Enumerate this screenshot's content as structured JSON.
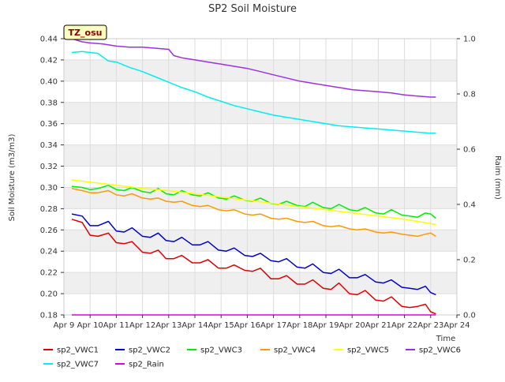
{
  "chart_data": {
    "type": "line",
    "title": "SP2 Soil Moisture",
    "xlabel": "Time",
    "ylabel": "Soil Moisture (m3/m3)",
    "y2label": "Raim (mm)",
    "badge": "TZ_osu",
    "colors": {
      "background_band": "#efefef",
      "badge_fill": "#ffffc0",
      "badge_text": "#8b0000"
    },
    "x_ticks": [
      "Apr 9",
      "Apr 10",
      "Apr 11",
      "Apr 12",
      "Apr 13",
      "Apr 14",
      "Apr 15",
      "Apr 16",
      "Apr 17",
      "Apr 18",
      "Apr 19",
      "Apr 20",
      "Apr 21",
      "Apr 22",
      "Apr 23",
      "Apr 24"
    ],
    "xlim": [
      0,
      15
    ],
    "ylim": [
      0.18,
      0.44
    ],
    "y_ticks": [
      "0.18",
      "0.20",
      "0.22",
      "0.24",
      "0.26",
      "0.28",
      "0.30",
      "0.32",
      "0.34",
      "0.36",
      "0.38",
      "0.40",
      "0.42",
      "0.44"
    ],
    "y2lim": [
      0.0,
      1.0
    ],
    "y2_ticks": [
      "0.0",
      "0.2",
      "0.4",
      "0.6",
      "0.8",
      "1.0"
    ],
    "grid": true,
    "legend": "bottom",
    "series": [
      {
        "name": "sp2_VWC1",
        "color": "#dd0000",
        "axis": "left",
        "x": [
          0.3,
          0.7,
          1.0,
          1.3,
          1.7,
          2.0,
          2.3,
          2.6,
          3.0,
          3.3,
          3.6,
          3.9,
          4.2,
          4.5,
          4.9,
          5.2,
          5.5,
          5.9,
          6.2,
          6.5,
          6.9,
          7.2,
          7.5,
          7.9,
          8.2,
          8.5,
          8.9,
          9.2,
          9.5,
          9.9,
          10.2,
          10.5,
          10.9,
          11.2,
          11.5,
          11.9,
          12.2,
          12.5,
          12.9,
          13.2,
          13.5,
          13.8,
          14.0,
          14.2
        ],
        "y": [
          0.27,
          0.267,
          0.255,
          0.254,
          0.257,
          0.248,
          0.247,
          0.249,
          0.239,
          0.238,
          0.241,
          0.233,
          0.233,
          0.236,
          0.229,
          0.229,
          0.232,
          0.224,
          0.224,
          0.227,
          0.222,
          0.221,
          0.224,
          0.214,
          0.214,
          0.217,
          0.209,
          0.209,
          0.213,
          0.205,
          0.204,
          0.21,
          0.2,
          0.199,
          0.203,
          0.194,
          0.193,
          0.197,
          0.188,
          0.187,
          0.188,
          0.19,
          0.183,
          0.181
        ]
      },
      {
        "name": "sp2_VWC2",
        "color": "#0000cc",
        "axis": "left",
        "x": [
          0.3,
          0.7,
          1.0,
          1.3,
          1.7,
          2.0,
          2.3,
          2.6,
          3.0,
          3.3,
          3.6,
          3.9,
          4.2,
          4.5,
          4.9,
          5.2,
          5.5,
          5.9,
          6.2,
          6.5,
          6.9,
          7.2,
          7.5,
          7.9,
          8.2,
          8.5,
          8.9,
          9.2,
          9.5,
          9.9,
          10.2,
          10.5,
          10.9,
          11.2,
          11.5,
          11.9,
          12.2,
          12.5,
          12.9,
          13.2,
          13.5,
          13.8,
          14.0,
          14.2
        ],
        "y": [
          0.275,
          0.273,
          0.264,
          0.264,
          0.268,
          0.259,
          0.258,
          0.262,
          0.254,
          0.253,
          0.257,
          0.25,
          0.249,
          0.253,
          0.246,
          0.246,
          0.249,
          0.241,
          0.24,
          0.243,
          0.236,
          0.235,
          0.238,
          0.231,
          0.23,
          0.233,
          0.225,
          0.224,
          0.228,
          0.22,
          0.219,
          0.223,
          0.215,
          0.215,
          0.218,
          0.211,
          0.21,
          0.213,
          0.206,
          0.205,
          0.204,
          0.207,
          0.201,
          0.199
        ]
      },
      {
        "name": "sp2_VWC3",
        "color": "#00ee00",
        "axis": "left",
        "x": [
          0.3,
          0.7,
          1.0,
          1.3,
          1.7,
          2.0,
          2.3,
          2.6,
          3.0,
          3.3,
          3.6,
          3.9,
          4.2,
          4.5,
          4.9,
          5.2,
          5.5,
          5.9,
          6.2,
          6.5,
          6.9,
          7.2,
          7.5,
          7.9,
          8.2,
          8.5,
          8.9,
          9.2,
          9.5,
          9.9,
          10.2,
          10.5,
          10.9,
          11.2,
          11.5,
          11.9,
          12.2,
          12.5,
          12.9,
          13.2,
          13.5,
          13.8,
          14.0,
          14.2
        ],
        "y": [
          0.301,
          0.3,
          0.298,
          0.299,
          0.302,
          0.298,
          0.297,
          0.3,
          0.296,
          0.295,
          0.299,
          0.294,
          0.293,
          0.297,
          0.293,
          0.292,
          0.295,
          0.29,
          0.289,
          0.292,
          0.288,
          0.287,
          0.29,
          0.285,
          0.284,
          0.287,
          0.283,
          0.282,
          0.286,
          0.281,
          0.28,
          0.284,
          0.279,
          0.278,
          0.281,
          0.276,
          0.275,
          0.279,
          0.274,
          0.273,
          0.272,
          0.276,
          0.275,
          0.271
        ]
      },
      {
        "name": "sp2_VWC4",
        "color": "#ff9900",
        "axis": "left",
        "x": [
          0.3,
          0.7,
          1.0,
          1.3,
          1.7,
          2.0,
          2.3,
          2.6,
          3.0,
          3.3,
          3.6,
          3.9,
          4.2,
          4.5,
          4.9,
          5.2,
          5.5,
          5.9,
          6.2,
          6.5,
          6.9,
          7.2,
          7.5,
          7.9,
          8.2,
          8.5,
          8.9,
          9.2,
          9.5,
          9.9,
          10.2,
          10.5,
          10.9,
          11.2,
          11.5,
          11.9,
          12.2,
          12.5,
          12.9,
          13.2,
          13.5,
          13.8,
          14.0,
          14.2
        ],
        "y": [
          0.299,
          0.297,
          0.295,
          0.295,
          0.297,
          0.293,
          0.292,
          0.294,
          0.29,
          0.289,
          0.29,
          0.287,
          0.286,
          0.287,
          0.283,
          0.282,
          0.283,
          0.279,
          0.278,
          0.279,
          0.275,
          0.274,
          0.275,
          0.271,
          0.27,
          0.271,
          0.268,
          0.267,
          0.268,
          0.264,
          0.263,
          0.264,
          0.261,
          0.26,
          0.261,
          0.258,
          0.257,
          0.258,
          0.256,
          0.255,
          0.254,
          0.256,
          0.257,
          0.254
        ]
      },
      {
        "name": "sp2_VWC5",
        "color": "#ffff00",
        "axis": "left",
        "x": [
          0.3,
          1.0,
          2.0,
          3.0,
          4.0,
          5.0,
          6.0,
          7.0,
          8.0,
          9.0,
          10.0,
          11.0,
          12.0,
          13.0,
          13.5,
          14.0,
          14.2
        ],
        "y": [
          0.307,
          0.305,
          0.302,
          0.299,
          0.297,
          0.294,
          0.291,
          0.288,
          0.285,
          0.282,
          0.279,
          0.276,
          0.273,
          0.27,
          0.268,
          0.266,
          0.265
        ]
      },
      {
        "name": "sp2_VWC6",
        "color": "#9933dd",
        "axis": "left",
        "x": [
          0.3,
          0.7,
          1.0,
          1.5,
          2.0,
          2.5,
          3.0,
          3.5,
          4.0,
          4.2,
          4.5,
          5.0,
          5.5,
          6.0,
          6.5,
          7.0,
          7.5,
          8.0,
          8.5,
          9.0,
          9.5,
          10.0,
          10.5,
          11.0,
          11.5,
          12.0,
          12.5,
          13.0,
          13.5,
          14.0,
          14.2
        ],
        "y": [
          0.44,
          0.437,
          0.436,
          0.435,
          0.433,
          0.432,
          0.432,
          0.431,
          0.43,
          0.424,
          0.422,
          0.42,
          0.418,
          0.416,
          0.414,
          0.412,
          0.409,
          0.406,
          0.403,
          0.4,
          0.398,
          0.396,
          0.394,
          0.392,
          0.391,
          0.39,
          0.389,
          0.387,
          0.386,
          0.385,
          0.385
        ]
      },
      {
        "name": "sp2_VWC7",
        "color": "#00eeee",
        "axis": "left",
        "x": [
          0.3,
          0.7,
          1.0,
          1.3,
          1.7,
          2.0,
          2.5,
          3.0,
          3.5,
          4.0,
          4.5,
          5.0,
          5.5,
          6.0,
          6.5,
          7.0,
          7.5,
          8.0,
          8.5,
          9.0,
          9.5,
          10.0,
          10.5,
          11.0,
          11.5,
          12.0,
          12.5,
          13.0,
          13.5,
          14.0,
          14.2
        ],
        "y": [
          0.427,
          0.428,
          0.427,
          0.426,
          0.419,
          0.418,
          0.413,
          0.409,
          0.404,
          0.399,
          0.394,
          0.39,
          0.385,
          0.381,
          0.377,
          0.374,
          0.371,
          0.368,
          0.366,
          0.364,
          0.362,
          0.36,
          0.358,
          0.357,
          0.356,
          0.355,
          0.354,
          0.353,
          0.352,
          0.351,
          0.351
        ]
      },
      {
        "name": "sp2_Rain",
        "color": "#dd00dd",
        "axis": "right",
        "x": [
          0.3,
          14.2
        ],
        "y": [
          0.0,
          0.0
        ]
      }
    ]
  }
}
